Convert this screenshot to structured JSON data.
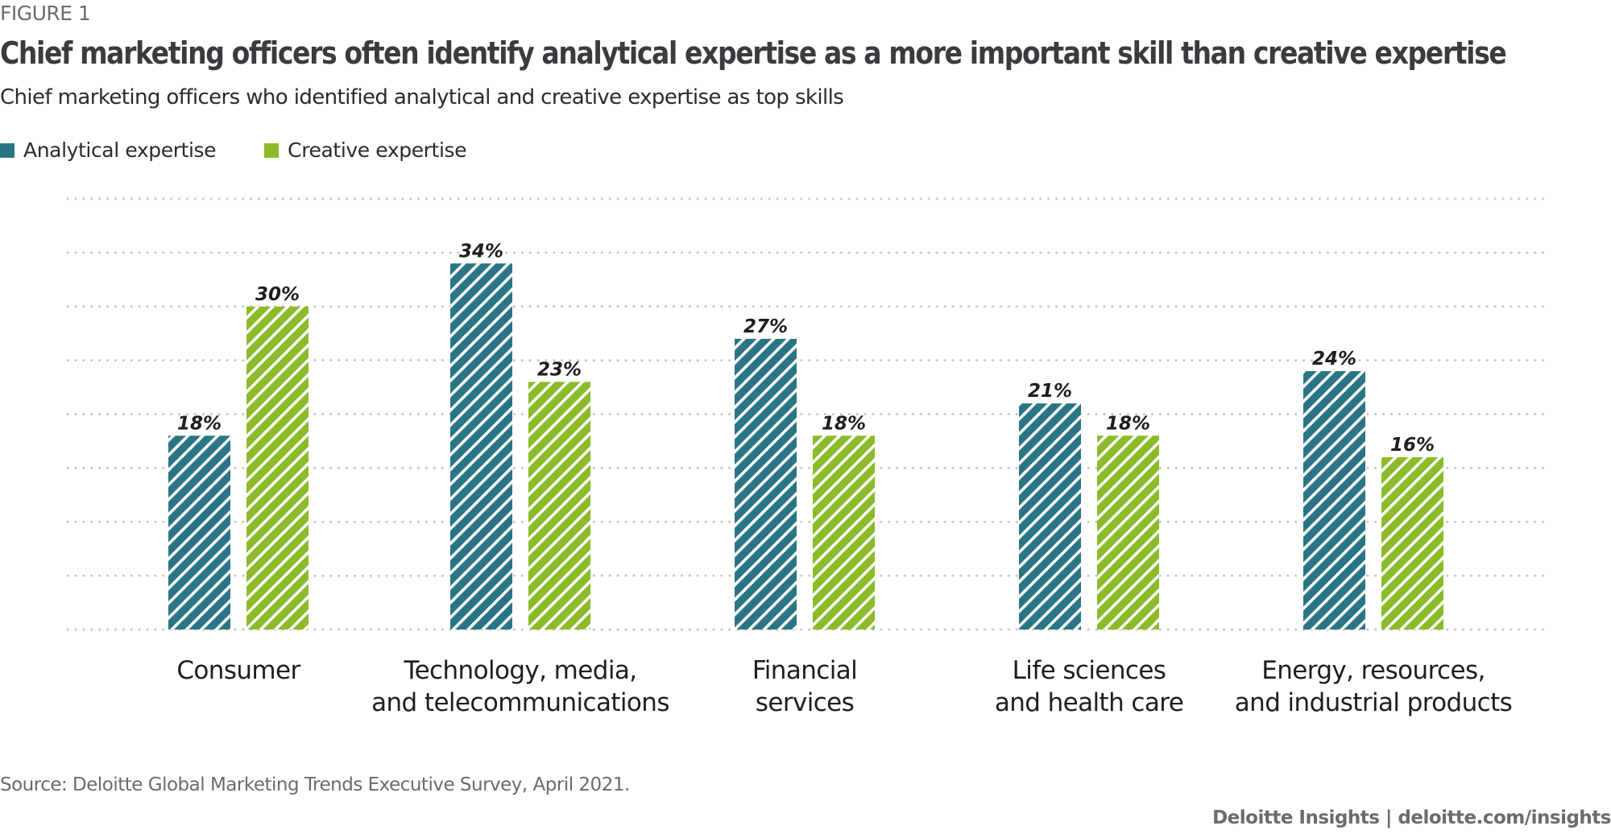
{
  "figure_label": "FIGURE 1",
  "title": "Chief marketing officers often identify analytical expertise as a more important skill than creative expertise",
  "subtitle": "Chief marketing officers who identified analytical and creative expertise as top skills",
  "source": "Source: Deloitte Global Marketing Trends Executive Survey, April 2021.",
  "credit": "Deloitte Insights | deloitte.com/insights",
  "colors": {
    "analytical": "#2a7585",
    "creative": "#8bbb28",
    "grid": "#c8c8c8"
  },
  "chart_data": {
    "type": "bar",
    "title": "Chief marketing officers often identify analytical expertise as a more important skill than creative expertise",
    "subtitle": "Chief marketing officers who identified analytical and creative expertise as top skills",
    "xlabel": "",
    "ylabel": "",
    "ylim": [
      0,
      40
    ],
    "grid": true,
    "grid_step": 5,
    "legend_position": "top-left",
    "value_suffix": "%",
    "categories": [
      [
        "Consumer"
      ],
      [
        "Technology, media,",
        "and telecommunications"
      ],
      [
        "Financial",
        "services"
      ],
      [
        "Life sciences",
        "and health care"
      ],
      [
        "Energy, resources,",
        "and industrial products"
      ]
    ],
    "series": [
      {
        "name": "Analytical expertise",
        "key": "analytical",
        "values": [
          18,
          34,
          27,
          21,
          24
        ]
      },
      {
        "name": "Creative expertise",
        "key": "creative",
        "values": [
          30,
          23,
          18,
          18,
          16
        ]
      }
    ]
  }
}
